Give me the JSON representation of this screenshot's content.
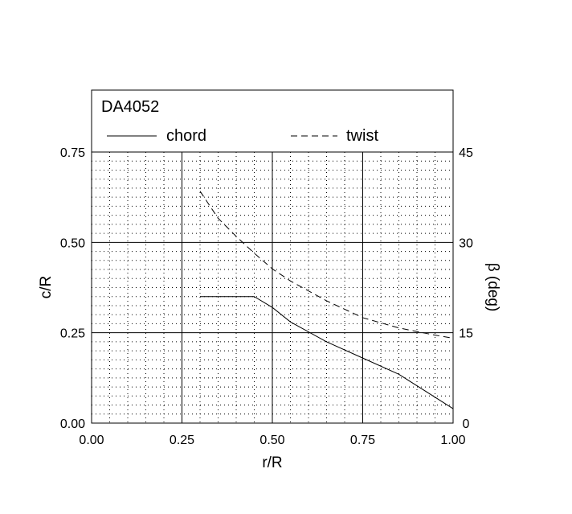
{
  "chart_data": {
    "type": "line",
    "title": "DA4052",
    "xlabel": "r/R",
    "ylabel_left": "c/R",
    "ylabel_right": "β (deg)",
    "xlim": [
      0,
      1
    ],
    "ylim_left": [
      0,
      0.75
    ],
    "ylim_right": [
      0,
      45
    ],
    "grid": true,
    "legend": "top",
    "x_ticks": [
      "0.00",
      "0.25",
      "0.50",
      "0.75",
      "1.00"
    ],
    "y_left_ticks": [
      "0.00",
      "0.25",
      "0.50",
      "0.75"
    ],
    "y_right_ticks": [
      "0",
      "15",
      "30",
      "45"
    ],
    "series": [
      {
        "name": "chord",
        "axis": "left",
        "style": "solid",
        "points": [
          [
            0.3,
            0.35
          ],
          [
            0.45,
            0.35
          ],
          [
            0.5,
            0.32
          ],
          [
            0.55,
            0.28
          ],
          [
            0.65,
            0.225
          ],
          [
            0.75,
            0.18
          ],
          [
            0.85,
            0.135
          ],
          [
            1.0,
            0.04
          ]
        ]
      },
      {
        "name": "twist",
        "axis": "right",
        "style": "dashed",
        "points": [
          [
            0.3,
            38.5
          ],
          [
            0.35,
            34.0
          ],
          [
            0.4,
            31.0
          ],
          [
            0.45,
            28.2
          ],
          [
            0.5,
            25.6
          ],
          [
            0.55,
            23.6
          ],
          [
            0.65,
            20.3
          ],
          [
            0.75,
            17.5
          ],
          [
            0.85,
            15.8
          ],
          [
            0.95,
            14.6
          ],
          [
            1.0,
            14.1
          ]
        ]
      }
    ]
  }
}
